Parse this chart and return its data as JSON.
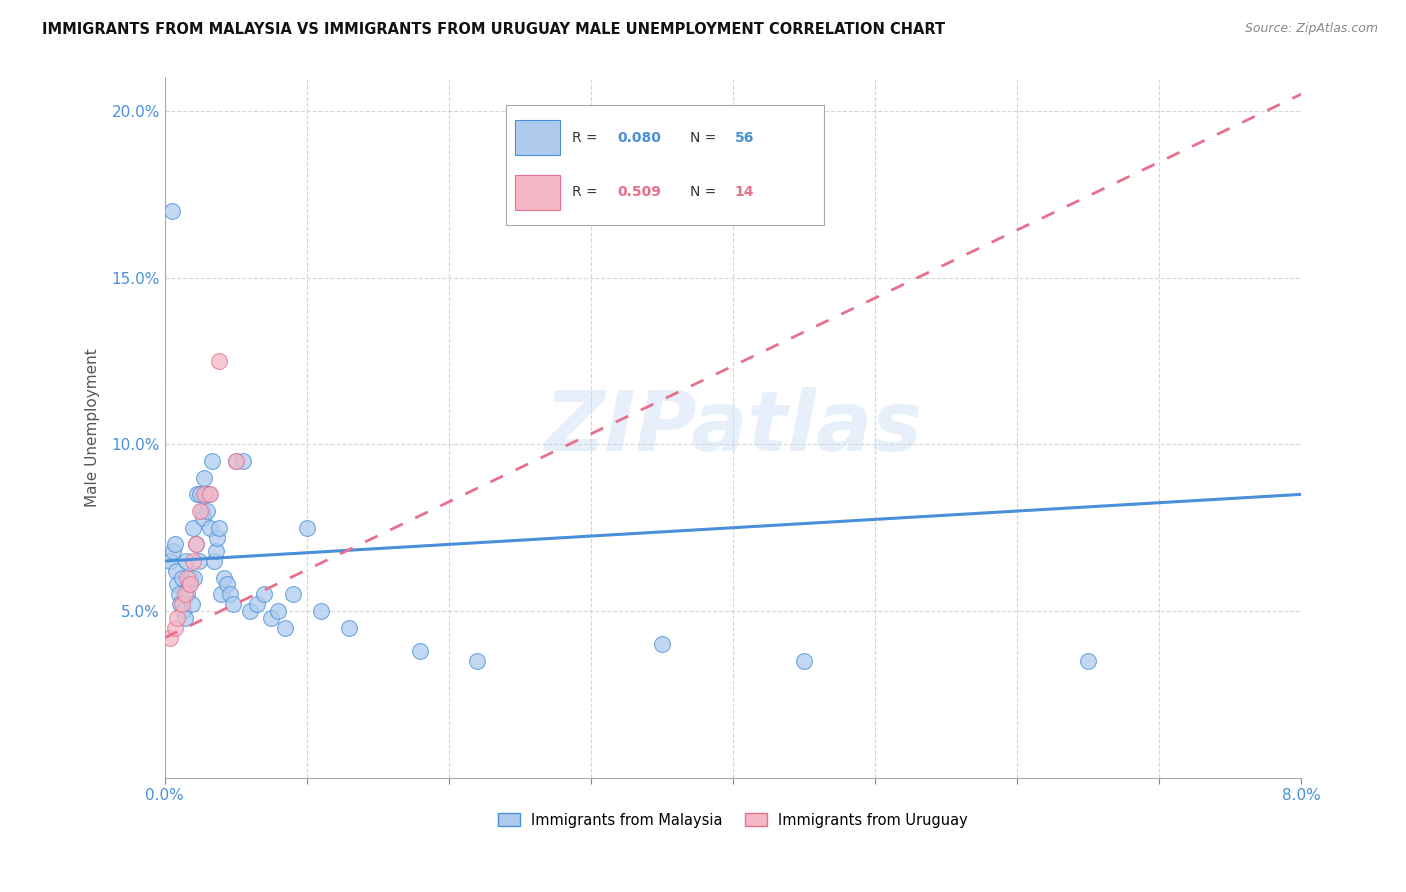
{
  "title": "IMMIGRANTS FROM MALAYSIA VS IMMIGRANTS FROM URUGUAY MALE UNEMPLOYMENT CORRELATION CHART",
  "source": "Source: ZipAtlas.com",
  "ylabel": "Male Unemployment",
  "xlim": [
    0.0,
    8.0
  ],
  "ylim": [
    0.0,
    21.0
  ],
  "yticks": [
    5.0,
    10.0,
    15.0,
    20.0
  ],
  "xticks": [
    0.0,
    1.0,
    2.0,
    3.0,
    4.0,
    5.0,
    6.0,
    7.0,
    8.0
  ],
  "malaysia_R": 0.08,
  "malaysia_N": 56,
  "uruguay_R": 0.509,
  "uruguay_N": 14,
  "malaysia_color": "#aecbee",
  "uruguay_color": "#f5b8c8",
  "malaysia_line_color": "#4a90d9",
  "uruguay_line_color": "#e8708a",
  "watermark": "ZIPatlas",
  "malaysia_x": [
    0.04,
    0.06,
    0.07,
    0.08,
    0.09,
    0.1,
    0.11,
    0.12,
    0.13,
    0.14,
    0.15,
    0.16,
    0.17,
    0.18,
    0.19,
    0.2,
    0.21,
    0.22,
    0.23,
    0.24,
    0.25,
    0.26,
    0.27,
    0.28,
    0.29,
    0.3,
    0.31,
    0.32,
    0.33,
    0.35,
    0.36,
    0.37,
    0.38,
    0.4,
    0.42,
    0.44,
    0.46,
    0.48,
    0.5,
    0.55,
    0.6,
    0.65,
    0.7,
    0.75,
    0.8,
    0.85,
    0.9,
    1.0,
    1.1,
    1.3,
    1.8,
    2.2,
    3.5,
    4.5,
    6.5,
    0.05
  ],
  "malaysia_y": [
    6.5,
    6.8,
    7.0,
    6.2,
    5.8,
    5.5,
    5.2,
    6.0,
    5.0,
    4.8,
    6.5,
    5.5,
    5.8,
    6.0,
    5.2,
    7.5,
    6.0,
    7.0,
    8.5,
    6.5,
    8.5,
    8.0,
    7.8,
    9.0,
    8.5,
    8.0,
    8.5,
    7.5,
    9.5,
    6.5,
    6.8,
    7.2,
    7.5,
    5.5,
    6.0,
    5.8,
    5.5,
    5.2,
    9.5,
    9.5,
    5.0,
    5.2,
    5.5,
    4.8,
    5.0,
    4.5,
    5.5,
    7.5,
    5.0,
    4.5,
    3.8,
    3.5,
    4.0,
    3.5,
    3.5,
    17.0
  ],
  "uruguay_x": [
    0.04,
    0.07,
    0.09,
    0.12,
    0.14,
    0.16,
    0.18,
    0.2,
    0.22,
    0.25,
    0.28,
    0.32,
    0.38,
    0.5
  ],
  "uruguay_y": [
    4.2,
    4.5,
    4.8,
    5.2,
    5.5,
    6.0,
    5.8,
    6.5,
    7.0,
    8.0,
    8.5,
    8.5,
    12.5,
    9.5
  ],
  "malaysia_line_x": [
    0.0,
    8.0
  ],
  "malaysia_line_y": [
    6.5,
    8.5
  ],
  "uruguay_line_x": [
    0.0,
    8.0
  ],
  "uruguay_line_y": [
    4.2,
    20.5
  ]
}
